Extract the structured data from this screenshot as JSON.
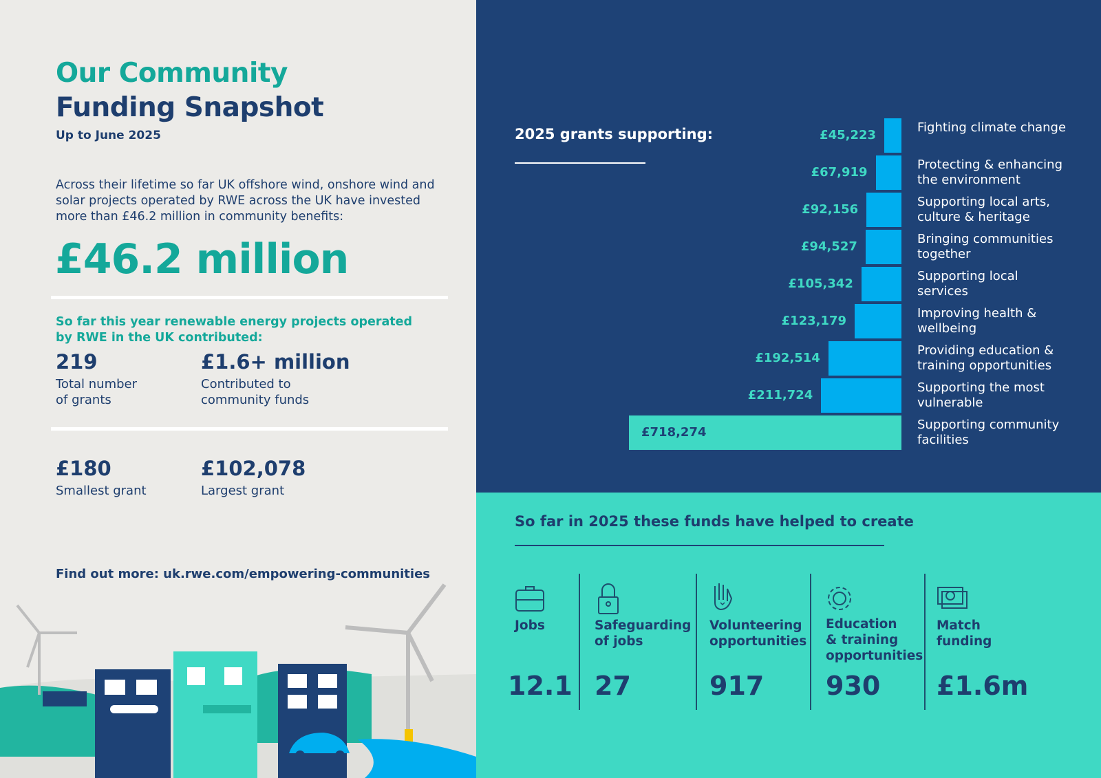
{
  "left": {
    "title_line1": "Our Community",
    "title_line2": "Funding Snapshot",
    "subtitle": "Up to June 2025",
    "intro": "Across their lifetime so far UK offshore wind, onshore wind and solar projects operated by RWE across the UK have invested more than £46.2 million in community benefits:",
    "headline": "£46.2 million",
    "year_intro": "So far this year renewable energy projects operated by RWE in the UK contributed:",
    "stats": [
      {
        "value": "219",
        "label1": "Total number",
        "label2": "of grants"
      },
      {
        "value": "£1.6+ million",
        "label1": "Contributed to",
        "label2": "community funds"
      },
      {
        "value": "£180",
        "label1": "Smallest grant",
        "label2": ""
      },
      {
        "value": "£102,078",
        "label1": "Largest grant",
        "label2": ""
      }
    ],
    "find_out_more": "Find out more: uk.rwe.com/empowering-communities"
  },
  "chart_data": {
    "type": "bar",
    "orientation": "horizontal",
    "title": "2025 grants supporting:",
    "categories": [
      "Fighting climate change",
      "Protecting & enhancing the environment",
      "Supporting local arts, culture & heritage",
      "Bringing communities together",
      "Supporting local services",
      "Improving health & wellbeing",
      "Providing education & training opportunities",
      "Supporting the most vulnerable",
      "Supporting community facilities"
    ],
    "values": [
      45223,
      67919,
      92156,
      94527,
      105342,
      123179,
      192514,
      211724,
      718274
    ],
    "value_labels": [
      "£45,223",
      "£67,919",
      "£92,156",
      "£94,527",
      "£105,342",
      "£123,179",
      "£192,514",
      "£211,724",
      "£718,274"
    ],
    "unit": "£",
    "colors": {
      "bar": "#00aeef",
      "highlight": "#3fd9c4",
      "label": "#3fd9c4"
    }
  },
  "impact": {
    "heading": "So far in 2025 these funds have helped to create",
    "items": [
      {
        "icon": "briefcase-icon",
        "label1": "Jobs",
        "label2": "",
        "label3": "",
        "value": "12.1"
      },
      {
        "icon": "padlock-icon",
        "label1": "Safeguarding",
        "label2": "of jobs",
        "label3": "",
        "value": "27"
      },
      {
        "icon": "hand-heart-icon",
        "label1": "Volunteering",
        "label2": "opportunities",
        "label3": "",
        "value": "917"
      },
      {
        "icon": "gear-icon",
        "label1": "Education",
        "label2": "& training",
        "label3": "opportunities",
        "value": "930"
      },
      {
        "icon": "banknote-pound-icon",
        "label1": "Match",
        "label2": "funding",
        "label3": "",
        "value": "£1.6m"
      }
    ]
  },
  "colors": {
    "navy": "#1e4276",
    "teal": "#3fd9c4",
    "green_text": "#14a89a",
    "background": "#ecebe8"
  }
}
